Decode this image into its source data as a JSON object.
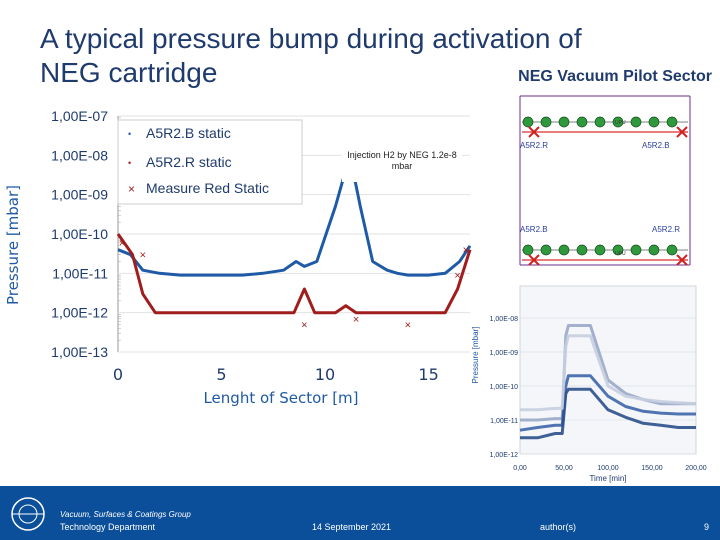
{
  "slide": {
    "title": "A typical pressure bump during activation of NEG cartridge",
    "subtitle": "NEG Vacuum Pilot Sector",
    "footer": {
      "group": "Vacuum, Surfaces & Coatings Group",
      "department": "Technology Department",
      "date": "14 September 2021",
      "author": "author(s)",
      "page": "9"
    },
    "colors": {
      "footer": "#0b4f9a",
      "title": "#1f3b6e",
      "blue": "#1f5aa6",
      "red": "#a11d1d"
    }
  },
  "chart_data": [
    {
      "type": "line",
      "ylabel": "Pressure [mbar]",
      "xlabel": "Lenght of Sector [m]",
      "x_ticks": [
        "0",
        "5",
        "10",
        "15"
      ],
      "y_ticks": [
        "1,00E-07",
        "1,00E-08",
        "1,00E-09",
        "1,00E-10",
        "1,00E-11",
        "1,00E-12",
        "1,00E-13"
      ],
      "xlim": [
        0,
        17
      ],
      "ylim_log10": [
        -13,
        -7
      ],
      "y_scale": "log",
      "legend": [
        "A5R2.B static",
        "A5R2.R static",
        "Measure Red Static"
      ],
      "legend_position": "top-left",
      "annotation": "Injection H2 by NEG 1.2e-8 mbar",
      "series": [
        {
          "name": "A5R2.B static",
          "x": [
            0,
            0.6,
            1.2,
            2,
            3,
            4,
            5,
            6,
            7,
            8,
            8.6,
            9,
            9.6,
            10.5,
            11.2,
            11.7,
            12.3,
            13,
            13.5,
            14,
            15,
            15.8,
            16.5,
            17
          ],
          "y": [
            4e-11,
            3e-11,
            1.2e-11,
            1e-11,
            9e-12,
            9e-12,
            9e-12,
            9e-12,
            1e-11,
            1.2e-11,
            2e-11,
            1.5e-11,
            2e-11,
            5e-10,
            1e-08,
            5e-10,
            2e-11,
            1.2e-11,
            1e-11,
            9e-12,
            9e-12,
            1e-11,
            2e-11,
            5e-11
          ]
        },
        {
          "name": "A5R2.R static",
          "x": [
            0,
            0.3,
            0.7,
            1.2,
            1.8,
            2.4,
            3,
            4,
            5,
            6,
            7,
            8,
            8.5,
            9,
            9.5,
            10,
            10.5,
            11,
            11.5,
            12,
            13,
            14,
            15,
            15.8,
            16.4,
            17
          ],
          "y": [
            1e-10,
            6e-11,
            3e-11,
            3e-12,
            1e-12,
            1e-12,
            1e-12,
            1e-12,
            1e-12,
            1e-12,
            1e-12,
            1e-12,
            1e-12,
            4e-12,
            1e-12,
            1e-12,
            1e-12,
            1.5e-12,
            1e-12,
            1e-12,
            1e-12,
            1e-12,
            1e-12,
            1e-12,
            4e-12,
            4e-11
          ]
        },
        {
          "name": "Measure Red Static",
          "x": [
            0.2,
            1.2,
            9,
            11.5,
            14,
            16.4,
            16.8
          ],
          "y": [
            6e-11,
            3e-11,
            5e-13,
            7e-13,
            5e-13,
            9e-12,
            4e-11
          ]
        }
      ]
    },
    {
      "type": "line",
      "ylabel": "Pressure [mbar]",
      "xlabel": "Time [min]",
      "x_ticks": [
        "0,00",
        "50,00",
        "100,00",
        "150,00",
        "200,00"
      ],
      "y_ticks": [
        "1,00E-08",
        "1,00E-09",
        "1,00E-10",
        "1,00E-11",
        "1,00E-12"
      ],
      "xlim": [
        0,
        200
      ],
      "ylim_log10": [
        -12,
        -8
      ],
      "y_scale": "log",
      "series": [
        {
          "x": [
            0,
            20,
            40,
            48,
            52,
            55,
            60,
            70,
            80,
            100,
            120,
            140,
            160,
            180,
            200
          ],
          "y": [
            1e-11,
            1e-11,
            1.1e-11,
            1.1e-11,
            3e-09,
            6e-09,
            6e-09,
            6e-09,
            6e-09,
            1.5e-10,
            6e-11,
            4e-11,
            3e-11,
            3e-11,
            3e-11
          ]
        },
        {
          "x": [
            0,
            20,
            40,
            48,
            52,
            55,
            60,
            70,
            80,
            100,
            120,
            140,
            160,
            180,
            200
          ],
          "y": [
            5e-12,
            6e-12,
            7e-12,
            7e-12,
            1e-10,
            2e-10,
            2e-10,
            2e-10,
            2e-10,
            5e-11,
            2.5e-11,
            1.8e-11,
            1.6e-11,
            1.5e-11,
            1.5e-11
          ]
        },
        {
          "x": [
            0,
            20,
            40,
            48,
            52,
            55,
            60,
            70,
            80,
            100,
            120,
            140,
            160,
            180,
            200
          ],
          "y": [
            3e-12,
            3e-12,
            4e-12,
            4e-12,
            6e-11,
            8e-11,
            8e-11,
            8e-11,
            8e-11,
            2e-11,
            1.2e-11,
            8e-12,
            7e-12,
            6e-12,
            6e-12
          ]
        },
        {
          "x": [
            0,
            20,
            40,
            48,
            52,
            55,
            60,
            70,
            80,
            100,
            120,
            140,
            160,
            180,
            200
          ],
          "y": [
            2e-11,
            2e-11,
            2.2e-11,
            2.2e-11,
            1.5e-09,
            3e-09,
            3e-09,
            3e-09,
            3e-09,
            1e-10,
            5e-11,
            4e-11,
            3.5e-11,
            3.2e-11,
            3e-11
          ]
        }
      ]
    }
  ],
  "schematic": {
    "labels": [
      "A5R2.R",
      "A5R2.B",
      "A5R2.B",
      "A5R2.R"
    ],
    "element_code": "UPU"
  }
}
